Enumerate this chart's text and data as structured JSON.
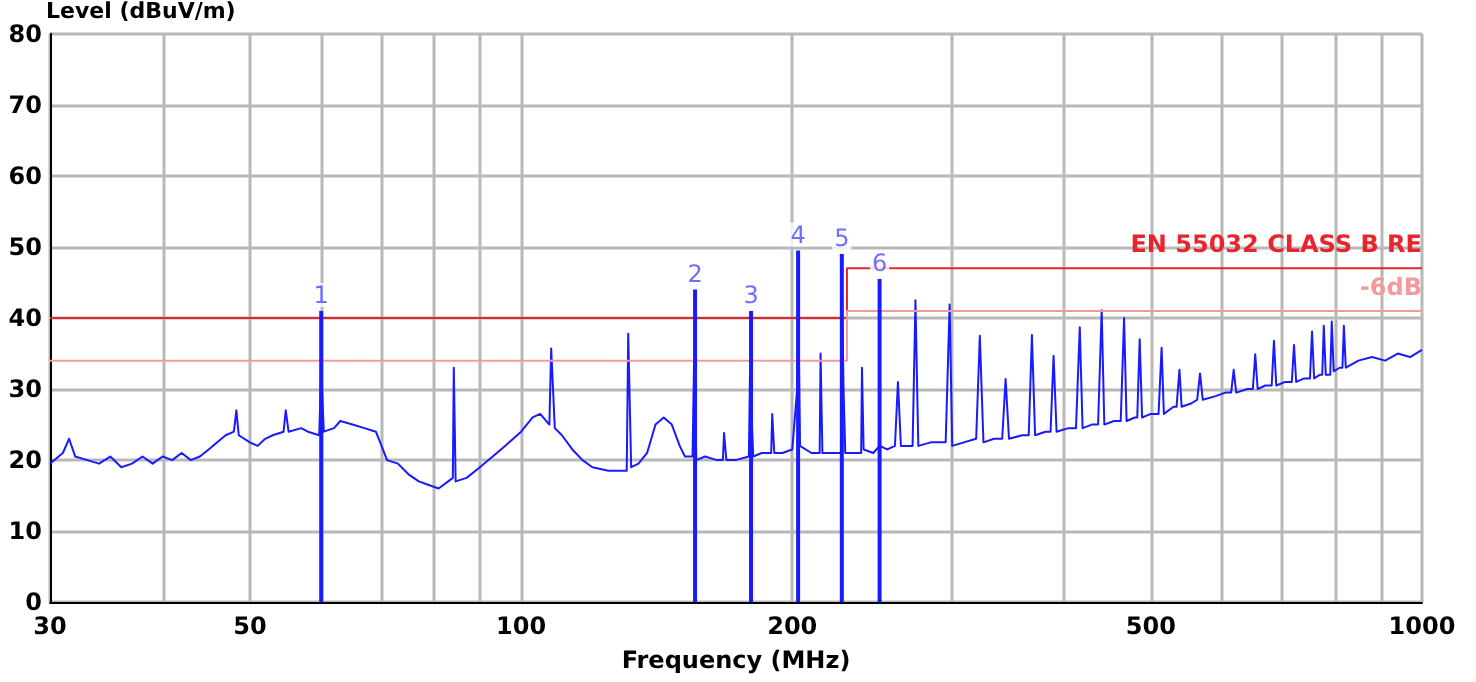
{
  "chart_data": {
    "type": "line",
    "xlabel": "Frequency (MHz)",
    "ylabel": "Level (dBuV/m)",
    "log": "x",
    "grid": true,
    "legend": false,
    "marker": "none",
    "xlim": [
      30,
      1000
    ],
    "xticks": [
      30,
      {
        "value": 40,
        "label": null
      },
      50,
      {
        "value": 60,
        "label": null
      },
      {
        "value": 70,
        "label": null
      },
      {
        "value": 80,
        "label": null
      },
      {
        "value": 90,
        "label": null
      },
      100,
      200,
      {
        "value": 300,
        "label": null
      },
      {
        "value": 400,
        "label": null
      },
      500,
      {
        "value": 600,
        "label": null
      },
      {
        "value": 700,
        "label": null
      },
      {
        "value": 800,
        "label": null
      },
      {
        "value": 900,
        "label": null
      },
      1000
    ],
    "ylim": [
      0,
      80
    ],
    "yticks": [
      0,
      10,
      20,
      30,
      40,
      50,
      60,
      70,
      80
    ],
    "annotations": [
      {
        "text": "1",
        "x": 60,
        "y": 41
      },
      {
        "text": "2",
        "x": 156,
        "y": 44
      },
      {
        "text": "3",
        "x": 180,
        "y": 41
      },
      {
        "text": "4",
        "x": 203,
        "y": 49.5
      },
      {
        "text": "5",
        "x": 227,
        "y": 49
      },
      {
        "text": "6",
        "x": 250,
        "y": 45.5
      }
    ],
    "series": [
      {
        "color": "#1a1aff",
        "x": [
          30,
          31,
          31.5,
          32,
          33,
          34,
          35,
          36,
          37,
          38,
          39,
          40,
          41,
          42,
          43,
          44,
          45,
          46,
          47,
          48,
          48.3,
          48.6,
          50,
          51,
          52,
          53,
          54.5,
          54.8,
          55.2,
          57,
          58,
          59.7,
          60,
          60.4,
          62,
          63,
          65,
          67,
          69,
          70,
          71,
          73,
          75,
          77,
          79,
          81,
          83,
          84,
          84.2,
          84.6,
          87,
          90,
          93,
          96,
          100,
          103,
          105,
          107.5,
          108,
          109,
          111,
          114,
          117,
          120,
          125,
          131,
          131.5,
          132.5,
          135,
          138,
          141,
          144,
          147,
          150,
          152,
          155,
          155.6,
          156.5,
          160,
          165,
          167.5,
          168,
          169,
          173,
          179,
          179.5,
          181,
          185,
          189.5,
          190,
          191,
          195,
          200,
          202.5,
          203,
          204,
          210,
          214.5,
          215,
          216,
          222,
          226.5,
          227,
          228,
          229,
          235,
          238.5,
          239,
          240,
          246,
          250,
          255,
          260,
          262,
          264,
          270,
          272,
          274,
          276,
          285,
          296,
          299,
          301,
          310,
          320,
          323,
          326,
          335,
          342,
          345,
          348,
          360,
          366,
          369,
          372,
          382,
          387,
          390,
          393,
          405,
          413,
          417,
          420,
          430,
          437,
          441,
          444,
          455,
          463,
          467,
          470,
          480,
          483,
          486,
          489,
          500,
          510,
          514,
          517,
          530,
          534,
          538,
          541,
          555,
          563,
          567,
          571,
          590,
          605,
          614,
          618,
          622,
          640,
          649,
          653,
          657,
          670,
          681,
          685,
          689,
          705,
          717,
          721,
          725,
          740,
          751,
          755,
          759,
          770,
          775,
          778,
          782,
          791,
          794,
          798,
          810,
          816,
          819,
          823,
          850,
          880,
          910,
          940,
          970,
          1000
        ],
        "values": [
          19.5,
          21,
          23,
          20.5,
          20,
          19.5,
          20.5,
          19,
          19.5,
          20.5,
          19.5,
          20.5,
          20,
          21,
          20,
          20.5,
          21.5,
          22.5,
          23.5,
          24,
          27,
          23.5,
          22.5,
          22,
          23,
          23.5,
          24,
          27,
          24,
          24.5,
          24,
          23.5,
          33,
          24,
          24.5,
          25.5,
          25,
          24.5,
          24,
          22,
          20,
          19.5,
          18,
          17,
          16.5,
          16,
          17,
          17.5,
          33,
          17,
          17.5,
          19,
          20.5,
          22,
          24,
          26,
          26.5,
          25,
          35.7,
          24.5,
          23.5,
          21.5,
          20,
          19,
          18.5,
          18.5,
          37.8,
          19,
          19.5,
          21,
          25,
          26,
          25,
          22,
          20.5,
          20.5,
          34,
          20,
          20.5,
          20,
          20,
          23.8,
          20,
          20,
          20.5,
          32,
          20.5,
          21,
          21,
          26.5,
          21,
          21,
          21.5,
          30,
          44,
          22,
          21,
          21,
          35,
          21,
          21,
          21,
          45,
          30,
          21,
          21,
          21,
          33,
          21.5,
          21,
          22,
          21.5,
          22,
          31,
          22,
          22,
          22,
          42.5,
          22,
          22.5,
          22.5,
          41.9,
          22,
          22.5,
          23,
          37.5,
          22.5,
          23,
          23,
          31.4,
          23,
          23.5,
          23.5,
          37.6,
          23.5,
          24,
          24,
          34.7,
          24,
          24.5,
          24.5,
          38.7,
          24.5,
          25,
          25,
          41.1,
          25,
          25.5,
          25.5,
          40,
          25.5,
          26,
          26,
          37,
          26,
          26.5,
          26.5,
          35.8,
          26.5,
          27.5,
          27.5,
          32.7,
          27.5,
          28,
          28.5,
          32.2,
          28.5,
          29,
          29.5,
          29.5,
          32.7,
          29.5,
          30,
          30,
          34.9,
          30,
          30.5,
          30.5,
          36.8,
          30.5,
          31,
          31,
          36.2,
          31,
          31.5,
          31.5,
          38.1,
          31.5,
          32,
          32,
          38.9,
          32,
          32,
          39.5,
          32.5,
          33,
          33,
          38.9,
          33,
          34,
          34.5,
          34,
          35,
          34.5,
          35.5
        ]
      },
      {
        "type": "bar",
        "color": "#1a1aff",
        "x": [
          60,
          156,
          180,
          203,
          227,
          250
        ],
        "values": [
          41,
          44,
          41,
          49.5,
          49,
          45.5
        ]
      },
      {
        "type": "line",
        "name": "EN 55032 CLASS B RE",
        "color": "#e8242c",
        "x": [
          30,
          230,
          230,
          1000
        ],
        "values": [
          40,
          40,
          47,
          47
        ]
      },
      {
        "type": "line",
        "name": "-6dB",
        "color": "#f59a9a",
        "x": [
          30,
          230,
          230,
          1000
        ],
        "values": [
          34,
          34,
          41,
          41
        ]
      }
    ]
  }
}
